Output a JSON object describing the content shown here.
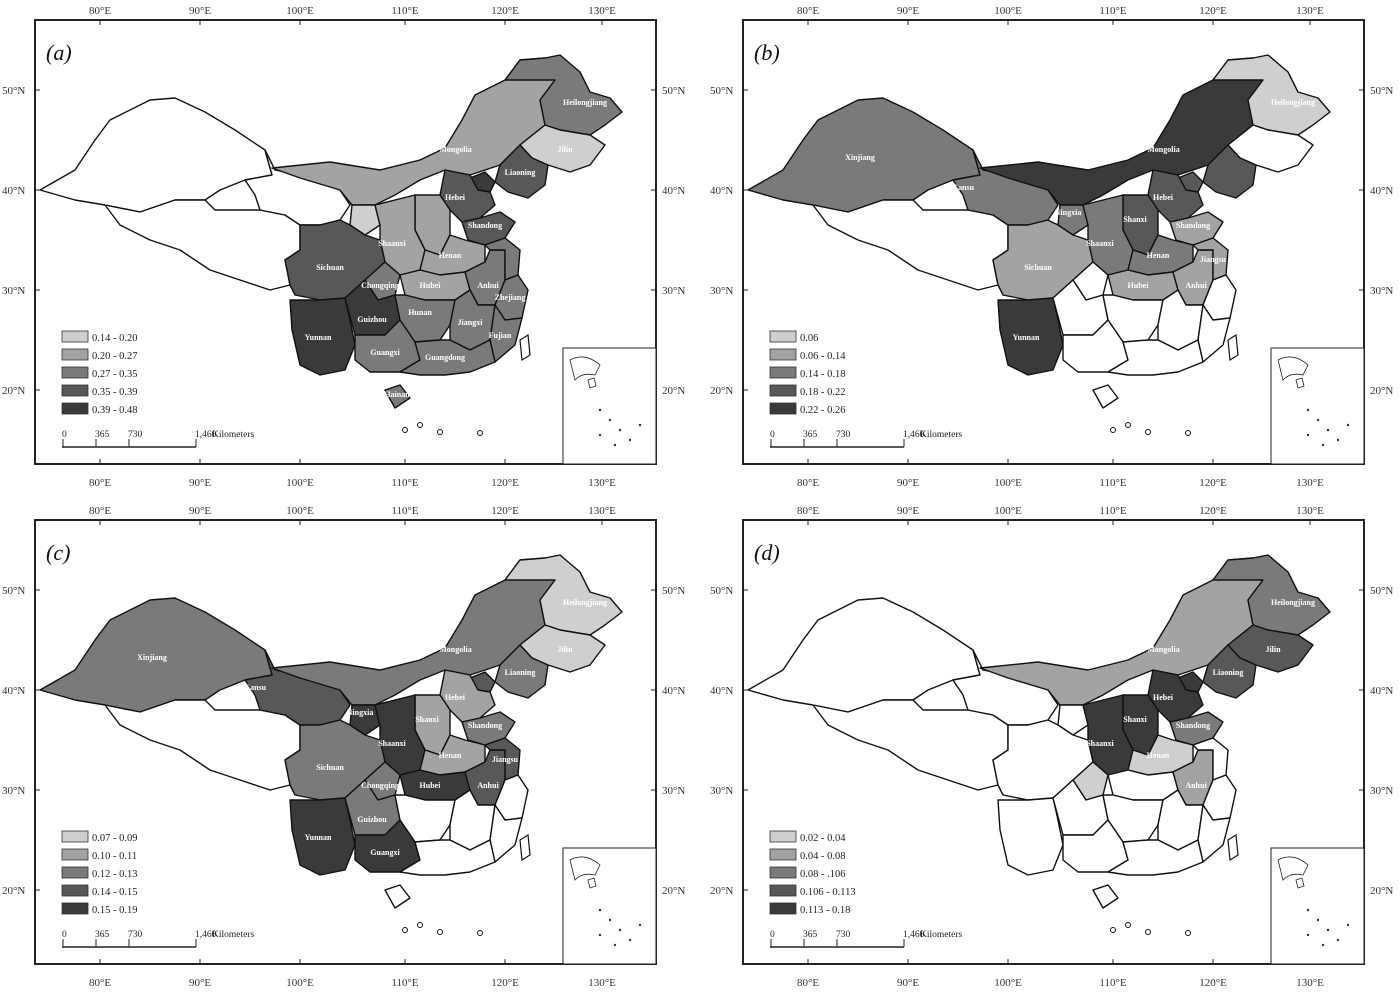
{
  "longitude_ticks": [
    "80°E",
    "90°E",
    "100°E",
    "110°E",
    "120°E",
    "130°E"
  ],
  "latitude_ticks": [
    "50°N",
    "40°N",
    "30°N",
    "20°N"
  ],
  "scale_bar": {
    "ticks": [
      "0",
      "365",
      "730",
      "1,460"
    ],
    "unit": "Kilometers"
  },
  "shade_colors": [
    "#ffffff",
    "#cfcfcf",
    "#a3a3a3",
    "#7a7a7a",
    "#585858",
    "#3a3a3a"
  ],
  "panels": [
    {
      "label": "(a)",
      "legend": [
        "0.14 - 0.20",
        "0.20 - 0.27",
        "0.27 - 0.35",
        "0.35 - 0.39",
        "0.39 - 0.48"
      ],
      "fills": {
        "xinjiang": 0,
        "qinghai_tibet": 0,
        "gansu": 0,
        "innermongolia": 2,
        "heilongjiang": 3,
        "jilin": 1,
        "liaoning": 4,
        "beijing": 5,
        "hebei": 4,
        "shanxi": 2,
        "shandong": 4,
        "ningxia": 1,
        "shaanxi": 2,
        "henan": 2,
        "sichuan": 4,
        "chongqing": 3,
        "hubei": 2,
        "anhui": 3,
        "jiangsu": 3,
        "zhejiang": 3,
        "yunnan": 5,
        "guizhou": 5,
        "hunan": 3,
        "jiangxi": 3,
        "fujian": 3,
        "guangxi": 3,
        "guangdong": 3,
        "hainan": 3
      },
      "labels": [
        [
          "Heilongjiang",
          "heilongjiang"
        ],
        [
          "Jilin",
          "jilin"
        ],
        [
          "Liaoning",
          "liaoning"
        ],
        [
          "Inner Mongolia",
          "innermongolia"
        ],
        [
          "Hebei",
          "hebei"
        ],
        [
          "Shandong",
          "shandong"
        ],
        [
          "Shaanxi",
          "shaanxi"
        ],
        [
          "Henan",
          "henan"
        ],
        [
          "Sichuan",
          "sichuan"
        ],
        [
          "Chongqing",
          "chongqing"
        ],
        [
          "Hubei",
          "hubei"
        ],
        [
          "Anhui",
          "anhui"
        ],
        [
          "Jiangxi",
          "jiangxi"
        ],
        [
          "Zhejiang",
          "zhejiang"
        ],
        [
          "Yunnan",
          "yunnan"
        ],
        [
          "Guizhou",
          "guizhou"
        ],
        [
          "Hunan",
          "hunan"
        ],
        [
          "Fujian",
          "fujian"
        ],
        [
          "Guangxi",
          "guangxi"
        ],
        [
          "Guangdong",
          "guangdong"
        ],
        [
          "Hainan",
          "hainan"
        ]
      ]
    },
    {
      "label": "(b)",
      "legend": [
        "0.06",
        "0.06 - 0.14",
        "0.14 - 0.18",
        "0.18 - 0.22",
        "0.22 - 0.26"
      ],
      "fills": {
        "xinjiang": 3,
        "qinghai_tibet": 0,
        "gansu": 3,
        "innermongolia": 5,
        "heilongjiang": 1,
        "jilin": 0,
        "liaoning": 4,
        "beijing": 4,
        "hebei": 4,
        "shanxi": 4,
        "shandong": 2,
        "ningxia": 3,
        "shaanxi": 3,
        "henan": 3,
        "sichuan": 2,
        "chongqing": 0,
        "hubei": 2,
        "anhui": 2,
        "jiangsu": 2,
        "zhejiang": 0,
        "yunnan": 5,
        "guizhou": 0,
        "hunan": 0,
        "jiangxi": 0,
        "fujian": 0,
        "guangxi": 0,
        "guangdong": 0,
        "hainan": 0
      },
      "labels": [
        [
          "Heilongjiang",
          "heilongjiang"
        ],
        [
          "Inner Mongolia",
          "innermongolia"
        ],
        [
          "Xinjiang",
          "xinjiang"
        ],
        [
          "Gansu",
          "gansu"
        ],
        [
          "Ningxia",
          "ningxia"
        ],
        [
          "Shanxi",
          "shanxi"
        ],
        [
          "Hebei",
          "hebei"
        ],
        [
          "Shandong",
          "shandong"
        ],
        [
          "Shaanxi",
          "shaanxi"
        ],
        [
          "Henan",
          "henan"
        ],
        [
          "Jiangsu",
          "jiangsu"
        ],
        [
          "Sichuan",
          "sichuan"
        ],
        [
          "Hubei",
          "hubei"
        ],
        [
          "Anhui",
          "anhui"
        ],
        [
          "Yunnan",
          "yunnan"
        ]
      ]
    },
    {
      "label": "(c)",
      "legend": [
        "0.07 - 0.09",
        "0.10 - 0.11",
        "0.12 - 0.13",
        "0.14 - 0.15",
        "0.15 - 0.19"
      ],
      "fills": {
        "xinjiang": 3,
        "qinghai_tibet": 0,
        "gansu": 4,
        "innermongolia": 3,
        "heilongjiang": 1,
        "jilin": 1,
        "liaoning": 3,
        "beijing": 4,
        "hebei": 2,
        "shanxi": 2,
        "shandong": 3,
        "ningxia": 5,
        "shaanxi": 5,
        "henan": 2,
        "sichuan": 3,
        "chongqing": 3,
        "hubei": 5,
        "anhui": 4,
        "jiangsu": 4,
        "zhejiang": 0,
        "yunnan": 5,
        "guizhou": 3,
        "hunan": 0,
        "jiangxi": 0,
        "fujian": 0,
        "guangxi": 5,
        "guangdong": 0,
        "hainan": 0
      },
      "labels": [
        [
          "Heilongjiang",
          "heilongjiang"
        ],
        [
          "Jilin",
          "jilin"
        ],
        [
          "Liaoning",
          "liaoning"
        ],
        [
          "Inner Mongolia",
          "innermongolia"
        ],
        [
          "Xinjiang",
          "xinjiang"
        ],
        [
          "Gansu",
          "gansu"
        ],
        [
          "Ningxia",
          "ningxia"
        ],
        [
          "Shanxi",
          "shanxi"
        ],
        [
          "Hebei",
          "hebei"
        ],
        [
          "Shandong",
          "shandong"
        ],
        [
          "Shaanxi",
          "shaanxi"
        ],
        [
          "Henan",
          "henan"
        ],
        [
          "Jiangsu",
          "jiangsu"
        ],
        [
          "Sichuan",
          "sichuan"
        ],
        [
          "Chongqing",
          "chongqing"
        ],
        [
          "Hubei",
          "hubei"
        ],
        [
          "Anhui",
          "anhui"
        ],
        [
          "Guizhou",
          "guizhou"
        ],
        [
          "Yunnan",
          "yunnan"
        ],
        [
          "Guangxi",
          "guangxi"
        ]
      ]
    },
    {
      "label": "(d)",
      "legend": [
        "0.02 - 0.04",
        "0.04 - 0.08",
        "0.08 - .106",
        "0.106 - 0.113",
        "0.113 - 0.18"
      ],
      "fills": {
        "xinjiang": 0,
        "qinghai_tibet": 0,
        "gansu": 0,
        "innermongolia": 2,
        "heilongjiang": 3,
        "jilin": 4,
        "liaoning": 4,
        "beijing": 5,
        "hebei": 5,
        "shanxi": 5,
        "shandong": 3,
        "ningxia": 0,
        "shaanxi": 5,
        "henan": 1,
        "sichuan": 0,
        "chongqing": 1,
        "hubei": 0,
        "anhui": 2,
        "jiangsu": 0,
        "zhejiang": 0,
        "yunnan": 0,
        "guizhou": 0,
        "hunan": 0,
        "jiangxi": 0,
        "fujian": 0,
        "guangxi": 0,
        "guangdong": 0,
        "hainan": 0
      },
      "labels": [
        [
          "Heilongjiang",
          "heilongjiang"
        ],
        [
          "Jilin",
          "jilin"
        ],
        [
          "Liaoning",
          "liaoning"
        ],
        [
          "Inner Mongolia",
          "innermongolia"
        ],
        [
          "Shanxi",
          "shanxi"
        ],
        [
          "Hebei",
          "hebei"
        ],
        [
          "Shandong",
          "shandong"
        ],
        [
          "Shaanxi",
          "shaanxi"
        ],
        [
          "Henan",
          "henan"
        ],
        [
          "Anhui",
          "anhui"
        ]
      ]
    }
  ]
}
